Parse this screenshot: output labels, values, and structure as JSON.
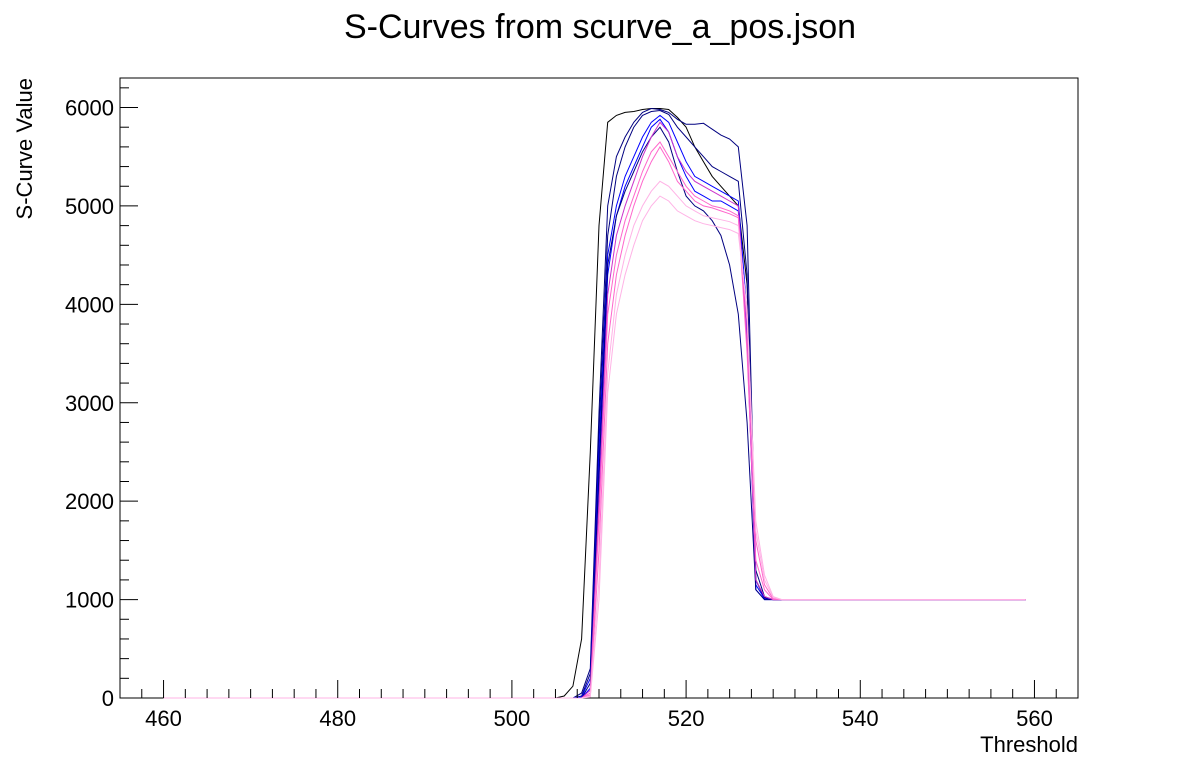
{
  "chart_data": {
    "type": "line",
    "title": "S-Curves from scurve_a_pos.json",
    "xlabel": "Threshold",
    "ylabel": "S-Curve Value",
    "xlim": [
      455,
      565
    ],
    "ylim": [
      0,
      6300
    ],
    "x_ticks": [
      460,
      480,
      500,
      520,
      540,
      560
    ],
    "y_ticks": [
      0,
      1000,
      2000,
      3000,
      4000,
      5000,
      6000
    ],
    "grid": false,
    "legend": "none",
    "colors": [
      "#000080",
      "#0000ff",
      "#ff66cc",
      "#ffb3e6",
      "#cc33cc",
      "#000000"
    ],
    "x": [
      460,
      505,
      506,
      507,
      508,
      509,
      510,
      511,
      512,
      513,
      514,
      515,
      516,
      517,
      518,
      519,
      520,
      521,
      522,
      523,
      524,
      525,
      526,
      527,
      528,
      529,
      530,
      531,
      559
    ],
    "series": [
      {
        "color": "#000000",
        "values": [
          0,
          0,
          20,
          120,
          600,
          2500,
          4800,
          5850,
          5920,
          5950,
          5960,
          5980,
          5990,
          5990,
          5980,
          5900,
          5800,
          5600,
          5450,
          5300,
          5200,
          5100,
          5000,
          4200,
          1200,
          1020,
          1000,
          1000,
          1000
        ]
      },
      {
        "color": "#000080",
        "values": [
          0,
          0,
          0,
          0,
          50,
          300,
          2900,
          5000,
          5500,
          5700,
          5850,
          5950,
          5990,
          5980,
          5950,
          5880,
          5830,
          5830,
          5840,
          5780,
          5720,
          5680,
          5600,
          4800,
          1300,
          1030,
          1000,
          1000,
          1000
        ]
      },
      {
        "color": "#000080",
        "values": [
          0,
          0,
          0,
          0,
          20,
          250,
          2700,
          4700,
          5300,
          5600,
          5800,
          5920,
          5960,
          5970,
          5930,
          5800,
          5700,
          5600,
          5500,
          5400,
          5350,
          5300,
          5250,
          4300,
          1200,
          1010,
          1000,
          1000,
          1000
        ]
      },
      {
        "color": "#0000ff",
        "values": [
          0,
          0,
          0,
          0,
          0,
          100,
          2200,
          4300,
          4900,
          5200,
          5400,
          5600,
          5800,
          5880,
          5750,
          5500,
          5300,
          5150,
          5100,
          5050,
          5050,
          5000,
          4950,
          3700,
          1100,
          1000,
          1000,
          1000,
          1000
        ]
      },
      {
        "color": "#0000ff",
        "values": [
          0,
          0,
          0,
          0,
          10,
          200,
          2500,
          4500,
          5000,
          5300,
          5500,
          5700,
          5850,
          5920,
          5850,
          5650,
          5450,
          5300,
          5250,
          5200,
          5150,
          5100,
          5050,
          3900,
          1150,
          1010,
          1000,
          1000,
          1000
        ]
      },
      {
        "color": "#000080",
        "values": [
          0,
          0,
          0,
          0,
          0,
          150,
          2300,
          4400,
          4900,
          5150,
          5350,
          5550,
          5700,
          5800,
          5650,
          5350,
          5100,
          5000,
          4950,
          4850,
          4700,
          4400,
          3900,
          2800,
          1100,
          1000,
          1000,
          1000,
          1000
        ]
      },
      {
        "color": "#cc33cc",
        "values": [
          0,
          0,
          0,
          0,
          0,
          80,
          2000,
          4100,
          4700,
          5000,
          5250,
          5500,
          5700,
          5850,
          5750,
          5500,
          5350,
          5250,
          5200,
          5150,
          5100,
          5050,
          5000,
          3600,
          1200,
          1030,
          1000,
          1000,
          1000
        ]
      },
      {
        "color": "#ff66cc",
        "values": [
          0,
          0,
          0,
          0,
          0,
          50,
          1800,
          3900,
          4500,
          4850,
          5100,
          5350,
          5550,
          5650,
          5500,
          5350,
          5200,
          5100,
          5050,
          5000,
          4980,
          4950,
          4900,
          3500,
          1400,
          1100,
          1000,
          1000,
          1000
        ]
      },
      {
        "color": "#ff66cc",
        "values": [
          0,
          0,
          0,
          0,
          0,
          30,
          1500,
          3600,
          4300,
          4700,
          5000,
          5250,
          5450,
          5600,
          5450,
          5250,
          5150,
          5050,
          5000,
          4980,
          4950,
          4920,
          4880,
          3800,
          1600,
          1150,
          1010,
          1000,
          1000
        ]
      },
      {
        "color": "#ffb3e6",
        "values": [
          0,
          0,
          0,
          0,
          0,
          20,
          1200,
          3300,
          4100,
          4500,
          4800,
          5000,
          5150,
          5250,
          5200,
          5100,
          5000,
          4950,
          4900,
          4880,
          4860,
          4840,
          4800,
          3900,
          1700,
          1200,
          1020,
          1000,
          1000
        ]
      },
      {
        "color": "#ffb3e6",
        "values": [
          0,
          0,
          0,
          0,
          0,
          10,
          1000,
          3100,
          3900,
          4300,
          4600,
          4850,
          5000,
          5100,
          5050,
          4950,
          4900,
          4850,
          4820,
          4800,
          4780,
          4760,
          4720,
          3950,
          1800,
          1250,
          1030,
          1000,
          1000
        ]
      }
    ]
  }
}
